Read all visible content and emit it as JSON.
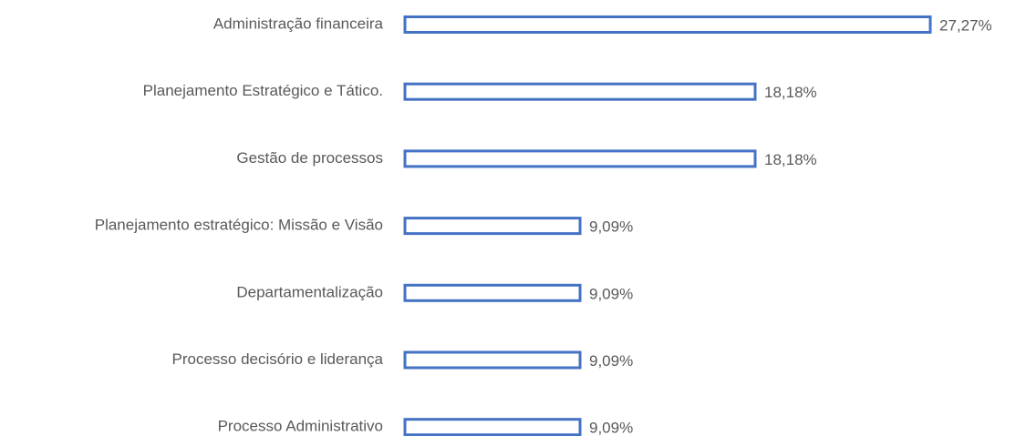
{
  "chart_data": {
    "type": "barh",
    "categories": [
      "Administração financeira",
      "Planejamento Estratégico e Tático.",
      "Gestão de processos",
      "Planejamento estratégico: Missão e Visão",
      "Departamentalização",
      "Processo decisório e liderança",
      "Processo Administrativo"
    ],
    "values": [
      27.27,
      18.18,
      18.18,
      9.09,
      9.09,
      9.09,
      9.09
    ],
    "value_labels": [
      "27,27%",
      "18,18%",
      "18,18%",
      "9,09%",
      "9,09%",
      "9,09%",
      "9,09%"
    ],
    "color": "#4472c4"
  }
}
